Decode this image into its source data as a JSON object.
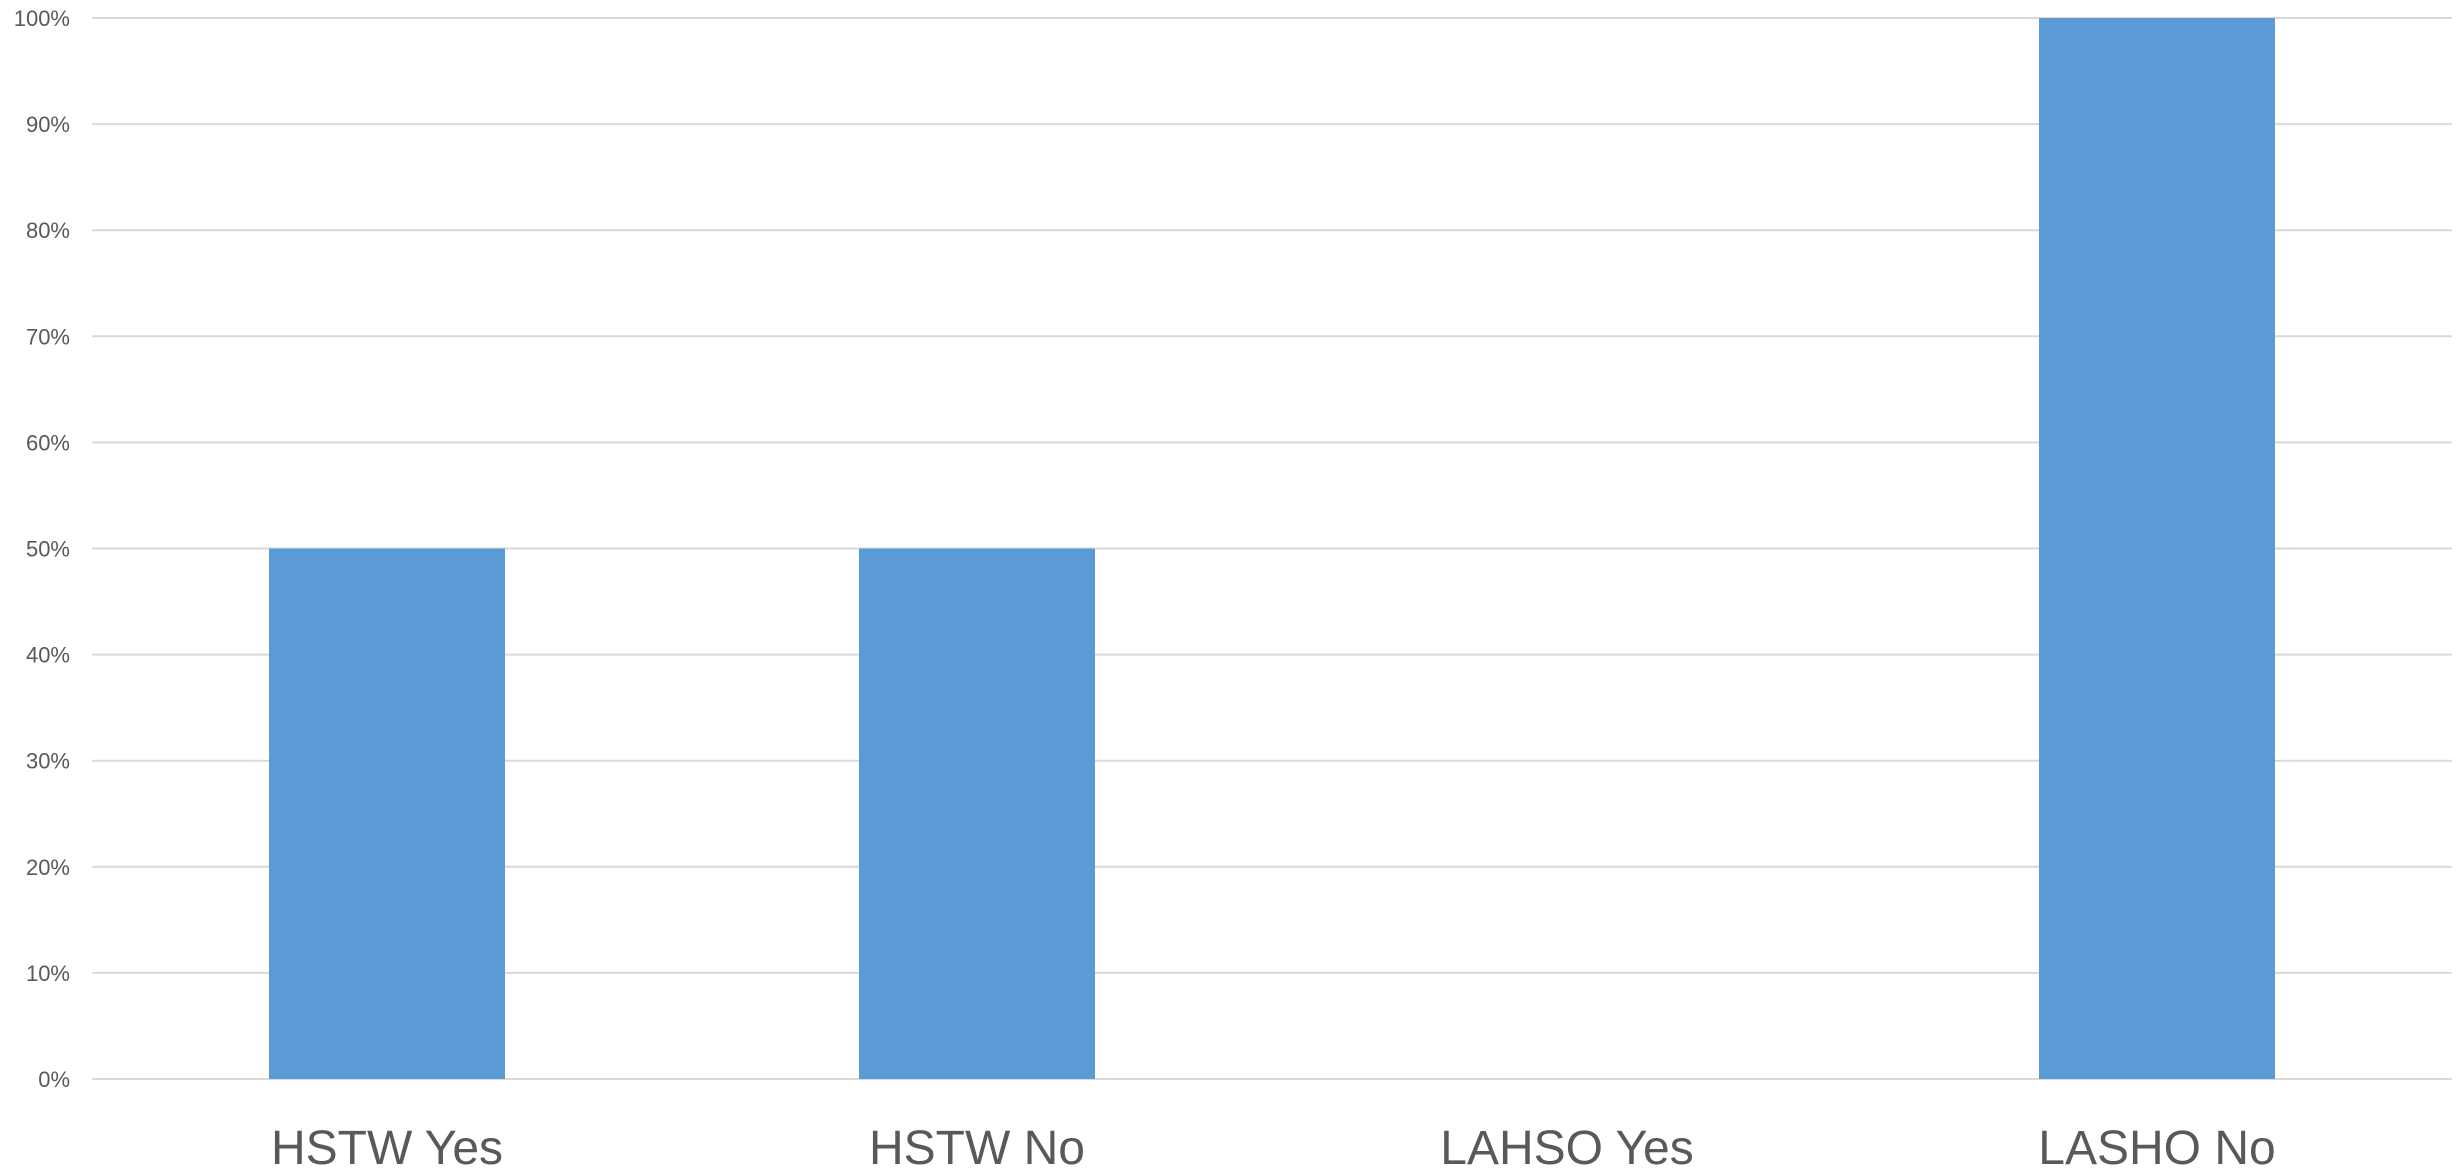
{
  "chart_data": {
    "type": "bar",
    "categories": [
      "HSTW Yes",
      "HSTW No",
      "LAHSO Yes",
      "LASHO No"
    ],
    "values": [
      50,
      50,
      0,
      100
    ],
    "ylim": [
      0,
      100
    ],
    "y_ticks": [
      "0%",
      "10%",
      "20%",
      "30%",
      "40%",
      "50%",
      "60%",
      "70%",
      "80%",
      "90%",
      "100%"
    ],
    "y_tick_values": [
      0,
      10,
      20,
      30,
      40,
      50,
      60,
      70,
      80,
      90,
      100
    ],
    "title": "",
    "xlabel": "",
    "ylabel": "",
    "grid": true,
    "legend": "none",
    "colors": {
      "bar": "#5b9bd5",
      "grid": "#d9d9d9",
      "text": "#595959"
    }
  }
}
